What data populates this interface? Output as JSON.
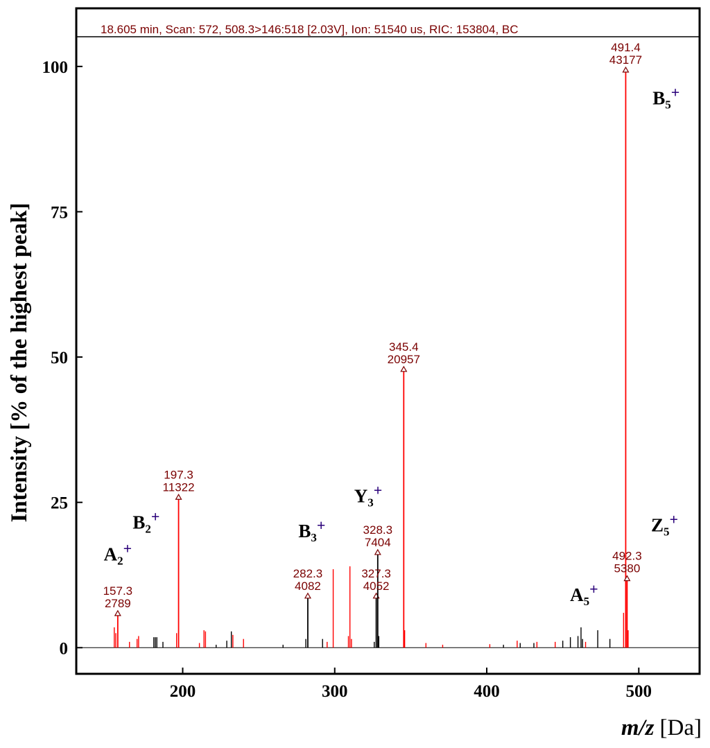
{
  "chart_data": {
    "type": "bar",
    "header": "18.605 min, Scan: 572, 508.3>146:518 [2.03V], Ion: 51540 us, RIC: 153804, BC",
    "xlabel_italic": "m/z",
    "xlabel_unit": "[Da]",
    "ylabel": "Intensity [% of the highest peak]",
    "xlim": [
      130,
      540
    ],
    "ylim": [
      -4.5,
      110
    ],
    "x_ticks": [
      200,
      300,
      400,
      500
    ],
    "y_ticks": [
      0,
      25,
      50,
      75,
      100
    ],
    "color_primary": "#ff0000",
    "color_secondary": "#000000",
    "color_label": "#7a0000",
    "labeled_peaks": [
      {
        "mz": "157.3",
        "count": "2789",
        "x": 157.3,
        "y": 6.0,
        "color": "#ff0000"
      },
      {
        "mz": "197.3",
        "count": "11322",
        "x": 197.3,
        "y": 26.0,
        "color": "#ff0000"
      },
      {
        "mz": "282.3",
        "count": "4082",
        "x": 282.3,
        "y": 9.0,
        "color": "#000000"
      },
      {
        "mz": "327.3",
        "count": "4052",
        "x": 327.3,
        "y": 9.0,
        "color": "#000000"
      },
      {
        "mz": "328.3",
        "count": "7404",
        "x": 328.3,
        "y": 16.5,
        "color": "#000000"
      },
      {
        "mz": "345.4",
        "count": "20957",
        "x": 345.4,
        "y": 48.0,
        "color": "#ff0000"
      },
      {
        "mz": "491.4",
        "count": "43177",
        "x": 491.4,
        "y": 99.5,
        "color": "#ff0000"
      },
      {
        "mz": "492.3",
        "count": "5380",
        "x": 492.3,
        "y": 12.0,
        "color": "#ff0000"
      }
    ],
    "minor_peaks": [
      {
        "x": 155,
        "y": 3.5,
        "color": "#ff0000"
      },
      {
        "x": 156,
        "y": 2.5,
        "color": "#ff0000"
      },
      {
        "x": 165,
        "y": 1.0,
        "color": "#ff0000"
      },
      {
        "x": 170,
        "y": 1.5,
        "color": "#ff0000"
      },
      {
        "x": 171,
        "y": 2.0,
        "color": "#ff0000"
      },
      {
        "x": 181,
        "y": 1.8,
        "color": "#000000"
      },
      {
        "x": 182,
        "y": 1.8,
        "color": "#000000"
      },
      {
        "x": 183,
        "y": 1.8,
        "color": "#000000"
      },
      {
        "x": 187,
        "y": 1.0,
        "color": "#000000"
      },
      {
        "x": 196,
        "y": 2.5,
        "color": "#ff0000"
      },
      {
        "x": 211,
        "y": 0.8,
        "color": "#ff0000"
      },
      {
        "x": 214,
        "y": 3.0,
        "color": "#ff0000"
      },
      {
        "x": 215,
        "y": 2.8,
        "color": "#ff0000"
      },
      {
        "x": 222,
        "y": 0.5,
        "color": "#000000"
      },
      {
        "x": 229,
        "y": 1.2,
        "color": "#000000"
      },
      {
        "x": 232,
        "y": 2.8,
        "color": "#000000"
      },
      {
        "x": 233,
        "y": 2.2,
        "color": "#ff0000"
      },
      {
        "x": 240,
        "y": 1.5,
        "color": "#ff0000"
      },
      {
        "x": 266,
        "y": 0.5,
        "color": "#000000"
      },
      {
        "x": 281,
        "y": 1.5,
        "color": "#000000"
      },
      {
        "x": 292,
        "y": 1.5,
        "color": "#000000"
      },
      {
        "x": 295,
        "y": 1.0,
        "color": "#ff0000"
      },
      {
        "x": 299,
        "y": 13.5,
        "color": "#ff0000"
      },
      {
        "x": 309,
        "y": 2.0,
        "color": "#ff0000"
      },
      {
        "x": 310,
        "y": 14.0,
        "color": "#ff0000"
      },
      {
        "x": 311,
        "y": 1.5,
        "color": "#ff0000"
      },
      {
        "x": 326,
        "y": 1.0,
        "color": "#000000"
      },
      {
        "x": 329,
        "y": 2.0,
        "color": "#000000"
      },
      {
        "x": 346,
        "y": 3.0,
        "color": "#ff0000"
      },
      {
        "x": 360,
        "y": 0.8,
        "color": "#ff0000"
      },
      {
        "x": 371,
        "y": 0.5,
        "color": "#ff0000"
      },
      {
        "x": 402,
        "y": 0.6,
        "color": "#ff0000"
      },
      {
        "x": 411,
        "y": 0.5,
        "color": "#000000"
      },
      {
        "x": 420,
        "y": 1.2,
        "color": "#ff0000"
      },
      {
        "x": 422,
        "y": 0.8,
        "color": "#000000"
      },
      {
        "x": 431,
        "y": 0.8,
        "color": "#000000"
      },
      {
        "x": 433,
        "y": 1.0,
        "color": "#ff0000"
      },
      {
        "x": 445,
        "y": 1.0,
        "color": "#ff0000"
      },
      {
        "x": 450,
        "y": 1.2,
        "color": "#000000"
      },
      {
        "x": 455,
        "y": 1.8,
        "color": "#000000"
      },
      {
        "x": 460,
        "y": 2.0,
        "color": "#000000"
      },
      {
        "x": 462,
        "y": 3.5,
        "color": "#000000"
      },
      {
        "x": 463,
        "y": 1.5,
        "color": "#000000"
      },
      {
        "x": 465,
        "y": 1.0,
        "color": "#ff0000"
      },
      {
        "x": 473,
        "y": 3.0,
        "color": "#000000"
      },
      {
        "x": 481,
        "y": 1.5,
        "color": "#000000"
      },
      {
        "x": 490,
        "y": 6.0,
        "color": "#ff0000"
      },
      {
        "x": 493,
        "y": 3.0,
        "color": "#ff0000"
      }
    ],
    "ion_annotations": [
      {
        "base": "A",
        "sub": "2",
        "sup": "+",
        "anchor_x": 157.3,
        "anchor_y": 15.0
      },
      {
        "base": "B",
        "sub": "2",
        "sup": "+",
        "anchor_x": 176,
        "anchor_y": 20.5
      },
      {
        "base": "B",
        "sub": "3",
        "sup": "+",
        "anchor_x": 285,
        "anchor_y": 19.0
      },
      {
        "base": "Y",
        "sub": "3",
        "sup": "+",
        "anchor_x": 322,
        "anchor_y": 25.0
      },
      {
        "base": "A",
        "sub": "5",
        "sup": "+",
        "anchor_x": 464,
        "anchor_y": 8.0
      },
      {
        "base": "B",
        "sub": "5",
        "sup": "+",
        "anchor_x": 518,
        "anchor_y": 93.5
      },
      {
        "base": "Z",
        "sub": "5",
        "sup": "+",
        "anchor_x": 517,
        "anchor_y": 20.0
      }
    ]
  }
}
